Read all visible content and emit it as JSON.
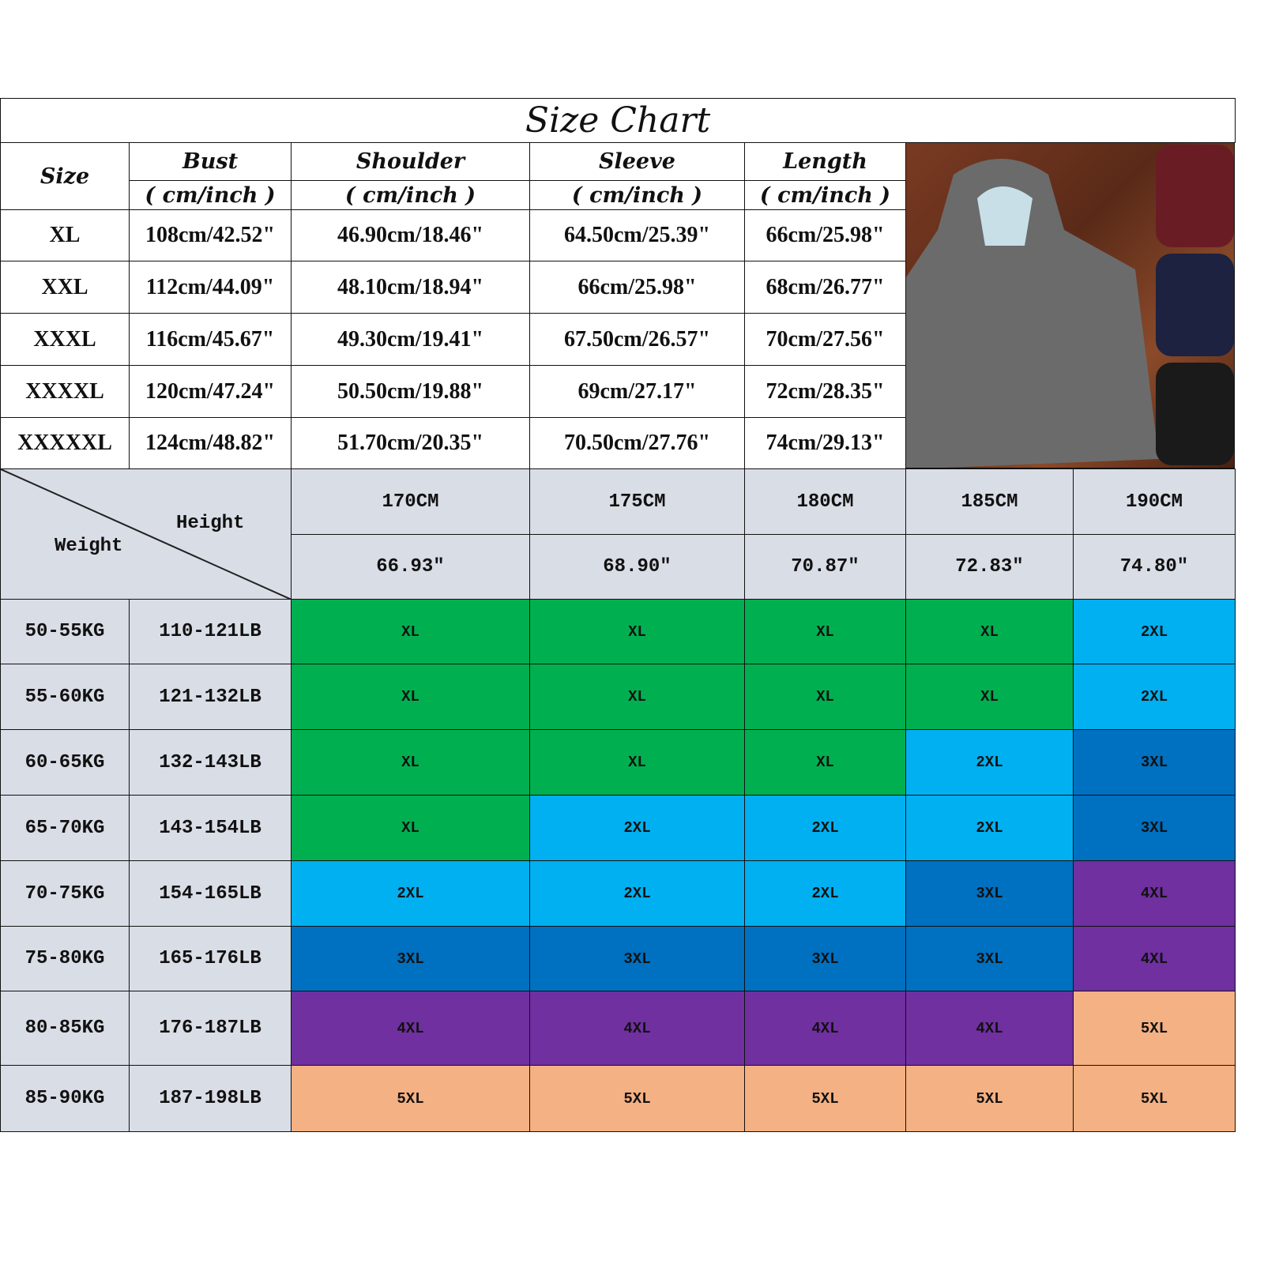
{
  "title": "Size Chart",
  "measure_table": {
    "size_header": "Size",
    "columns": [
      {
        "name": "Bust",
        "unit": "( cm/inch )"
      },
      {
        "name": "Shoulder",
        "unit": "( cm/inch )"
      },
      {
        "name": "Sleeve",
        "unit": "( cm/inch )"
      },
      {
        "name": "Length",
        "unit": "( cm/inch )"
      }
    ],
    "rows": [
      {
        "size": "XL",
        "values": [
          "108cm/42.52\"",
          "46.90cm/18.46\"",
          "64.50cm/25.39\"",
          "66cm/25.98\""
        ]
      },
      {
        "size": "XXL",
        "values": [
          "112cm/44.09\"",
          "48.10cm/18.94\"",
          "66cm/25.98\"",
          "68cm/26.77\""
        ]
      },
      {
        "size": "XXXL",
        "values": [
          "116cm/45.67\"",
          "49.30cm/19.41\"",
          "67.50cm/26.57\"",
          "70cm/27.56\""
        ]
      },
      {
        "size": "XXXXL",
        "values": [
          "120cm/47.24\"",
          "50.50cm/19.88\"",
          "69cm/27.17\"",
          "72cm/28.35\""
        ]
      },
      {
        "size": "XXXXXL",
        "values": [
          "124cm/48.82\"",
          "51.70cm/20.35\"",
          "70.50cm/27.76\"",
          "74cm/29.13\""
        ]
      }
    ]
  },
  "fit_table": {
    "height_label": "Height",
    "weight_label": "Weight",
    "heights_cm": [
      "170CM",
      "175CM",
      "180CM",
      "185CM",
      "190CM"
    ],
    "heights_in": [
      "66.93″",
      "68.90″",
      "70.87″",
      "72.83″",
      "74.80″"
    ],
    "rows": [
      {
        "kg": "50-55KG",
        "lb": "110-121LB",
        "sizes": [
          "XL",
          "XL",
          "XL",
          "XL",
          "2XL"
        ]
      },
      {
        "kg": "55-60KG",
        "lb": "121-132LB",
        "sizes": [
          "XL",
          "XL",
          "XL",
          "XL",
          "2XL"
        ]
      },
      {
        "kg": "60-65KG",
        "lb": "132-143LB",
        "sizes": [
          "XL",
          "XL",
          "XL",
          "2XL",
          "3XL"
        ]
      },
      {
        "kg": "65-70KG",
        "lb": "143-154LB",
        "sizes": [
          "XL",
          "2XL",
          "2XL",
          "2XL",
          "3XL"
        ]
      },
      {
        "kg": "70-75KG",
        "lb": "154-165LB",
        "sizes": [
          "2XL",
          "2XL",
          "2XL",
          "3XL",
          "4XL"
        ]
      },
      {
        "kg": "75-80KG",
        "lb": "165-176LB",
        "sizes": [
          "3XL",
          "3XL",
          "3XL",
          "3XL",
          "4XL"
        ]
      },
      {
        "kg": "80-85KG",
        "lb": "176-187LB",
        "sizes": [
          "4XL",
          "4XL",
          "4XL",
          "4XL",
          "5XL"
        ]
      },
      {
        "kg": "85-90KG",
        "lb": "187-198LB",
        "sizes": [
          "5XL",
          "5XL",
          "5XL",
          "5XL",
          "5XL"
        ]
      }
    ]
  },
  "colors": {
    "XL": "#00b050",
    "2XL": "#00b0f0",
    "3XL": "#0070c0",
    "4XL": "#7030a0",
    "5XL": "#f4b183",
    "header_gray": "#d9dde6"
  },
  "photo": {
    "icon": "jacket-product-photo",
    "jacket_colors": [
      "#6b6b6b",
      "#6a1c24",
      "#1c2240",
      "#1a1a1a"
    ]
  }
}
